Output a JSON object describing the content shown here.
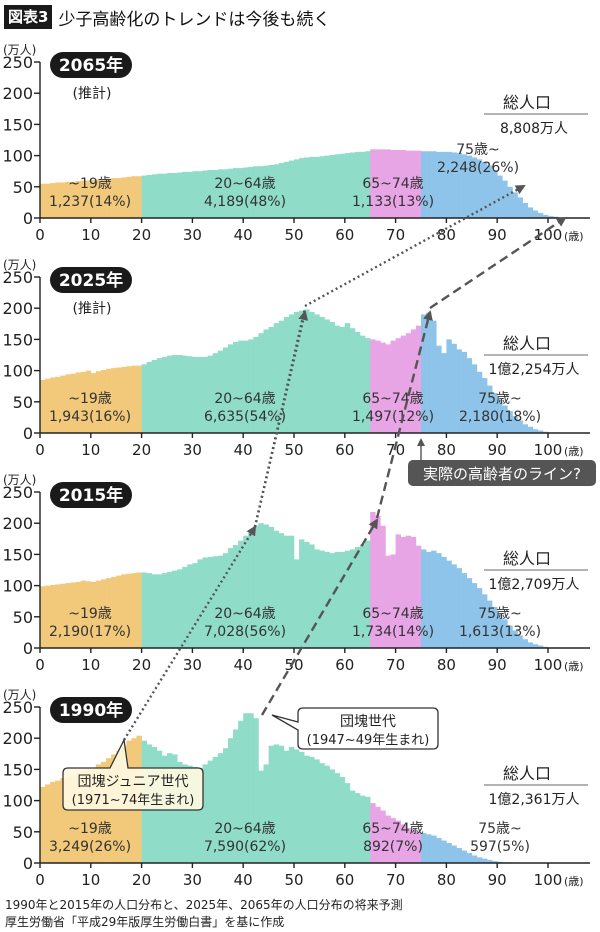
{
  "header": {
    "badge": "図表3",
    "title": "少子高齢化のトレンドは今後も続く"
  },
  "axis": {
    "y_unit": "(万人)",
    "y_ticks": [
      0,
      50,
      100,
      150,
      200,
      250
    ],
    "x_ticks": [
      "0",
      "10",
      "20",
      "30",
      "40",
      "50",
      "60",
      "70",
      "80",
      "90",
      "100"
    ],
    "x_unit": "(歳)"
  },
  "colors": {
    "youth": "#f2c97a",
    "working": "#8fdcc8",
    "young_old": "#e8a5e6",
    "old_old": "#8ec4ea",
    "badge": "#1a1a1a",
    "arrow": "#555555",
    "callout_dark": "#555555"
  },
  "panels": [
    {
      "year_label": "2065年",
      "sub_label": "(推計)",
      "total_label": "総人口",
      "total_value": "8,808万人",
      "groups": [
        {
          "name": "~19歳",
          "value": "1,237(14%)"
        },
        {
          "name": "20~64歳",
          "value": "4,189(48%)"
        },
        {
          "name": "65~74歳",
          "value": "1,133(13%)"
        },
        {
          "name": "75歳~",
          "value": "2,248(26%)"
        }
      ]
    },
    {
      "year_label": "2025年",
      "sub_label": "(推計)",
      "total_label": "総人口",
      "total_value": "1億2,254万人",
      "groups": [
        {
          "name": "~19歳",
          "value": "1,943(16%)"
        },
        {
          "name": "20~64歳",
          "value": "6,635(54%)"
        },
        {
          "name": "65~74歳",
          "value": "1,497(12%)"
        },
        {
          "name": "75歳~",
          "value": "2,180(18%)"
        }
      ],
      "callout": "実際の高齢者のライン?"
    },
    {
      "year_label": "2015年",
      "sub_label": "",
      "total_label": "総人口",
      "total_value": "1億2,709万人",
      "groups": [
        {
          "name": "~19歳",
          "value": "2,190(17%)"
        },
        {
          "name": "20~64歳",
          "value": "7,028(56%)"
        },
        {
          "name": "65~74歳",
          "value": "1,734(14%)"
        },
        {
          "name": "75歳~",
          "value": "1,613(13%)"
        }
      ]
    },
    {
      "year_label": "1990年",
      "sub_label": "",
      "total_label": "総人口",
      "total_value": "1億2,361万人",
      "groups": [
        {
          "name": "~19歳",
          "value": "3,249(26%)"
        },
        {
          "name": "20~64歳",
          "value": "7,590(62%)"
        },
        {
          "name": "65~74歳",
          "value": "892(7%)"
        },
        {
          "name": "75歳~",
          "value": "597(5%)"
        }
      ],
      "callouts": [
        {
          "line1": "団塊ジュニア世代",
          "line2": "(1971~74年生まれ)"
        },
        {
          "line1": "団塊世代",
          "line2": "(1947~49年生まれ)"
        }
      ]
    }
  ],
  "footer": {
    "line1": "1990年と2015年の人口分布と、2025年、2065年の人口分布の将来予測",
    "line2": "厚生労働省「平成29年版厚生労働白書」を基に作成"
  },
  "chart_data": [
    {
      "type": "bar",
      "title": "2065年 (推計)",
      "xlabel": "年齢(歳)",
      "ylabel": "人口(万人)",
      "ylim": [
        0,
        250
      ],
      "xlim": [
        0,
        105
      ],
      "total": "8,808万人",
      "x": "ages 0..105",
      "values": [
        55,
        55,
        56,
        57,
        57,
        58,
        58,
        59,
        60,
        60,
        61,
        62,
        62,
        63,
        64,
        64,
        65,
        66,
        67,
        67,
        68,
        69,
        70,
        71,
        71,
        72,
        72,
        73,
        74,
        74,
        75,
        75,
        76,
        77,
        77,
        78,
        78,
        79,
        80,
        80,
        81,
        82,
        83,
        83,
        84,
        85,
        86,
        88,
        90,
        92,
        94,
        96,
        97,
        98,
        98,
        99,
        100,
        101,
        102,
        103,
        104,
        105,
        106,
        106,
        107,
        110,
        110,
        110,
        110,
        109,
        109,
        109,
        108,
        108,
        108,
        107,
        107,
        107,
        106,
        106,
        106,
        105,
        104,
        102,
        100,
        97,
        94,
        90,
        84,
        77,
        68,
        60,
        50,
        41,
        33,
        24,
        17,
        12,
        8,
        5,
        3,
        2,
        1,
        1,
        0,
        0
      ],
      "groups": [
        {
          "name": "~19歳",
          "range": [
            0,
            19
          ],
          "total": 1237,
          "pct": 14
        },
        {
          "name": "20~64歳",
          "range": [
            20,
            64
          ],
          "total": 4189,
          "pct": 48
        },
        {
          "name": "65~74歳",
          "range": [
            65,
            74
          ],
          "total": 1133,
          "pct": 13
        },
        {
          "name": "75歳~",
          "range": [
            75,
            105
          ],
          "total": 2248,
          "pct": 26
        }
      ]
    },
    {
      "type": "bar",
      "title": "2025年 (推計)",
      "xlabel": "年齢(歳)",
      "ylabel": "人口(万人)",
      "ylim": [
        0,
        250
      ],
      "xlim": [
        0,
        105
      ],
      "total": "1億2,254万人",
      "values": [
        85,
        87,
        89,
        90,
        92,
        94,
        95,
        97,
        98,
        100,
        96,
        99,
        101,
        103,
        104,
        105,
        106,
        107,
        108,
        108,
        110,
        114,
        117,
        120,
        122,
        124,
        125,
        125,
        124,
        123,
        122,
        122,
        122,
        124,
        128,
        132,
        137,
        142,
        146,
        148,
        148,
        150,
        154,
        160,
        166,
        170,
        176,
        180,
        186,
        190,
        194,
        196,
        198,
        194,
        190,
        186,
        182,
        178,
        172,
        170,
        176,
        168,
        162,
        156,
        152,
        150,
        148,
        145,
        142,
        148,
        152,
        156,
        160,
        166,
        172,
        190,
        193,
        180,
        140,
        128,
        150,
        143,
        134,
        130,
        120,
        110,
        98,
        88,
        76,
        64,
        54,
        44,
        35,
        27,
        20,
        14,
        10,
        6,
        4,
        2,
        1,
        1,
        0,
        0,
        0,
        0
      ],
      "groups": [
        {
          "name": "~19歳",
          "range": [
            0,
            19
          ],
          "total": 1943,
          "pct": 16
        },
        {
          "name": "20~64歳",
          "range": [
            20,
            64
          ],
          "total": 6635,
          "pct": 54
        },
        {
          "name": "65~74歳",
          "range": [
            65,
            74
          ],
          "total": 1497,
          "pct": 12
        },
        {
          "name": "75歳~",
          "range": [
            75,
            105
          ],
          "total": 2180,
          "pct": 18
        }
      ],
      "annotation": "実際の高齢者のライン? (75歳)"
    },
    {
      "type": "bar",
      "title": "2015年",
      "xlabel": "年齢(歳)",
      "ylabel": "人口(万人)",
      "ylim": [
        0,
        250
      ],
      "xlim": [
        0,
        105
      ],
      "total": "1億2,709万人",
      "values": [
        99,
        100,
        101,
        102,
        103,
        104,
        105,
        106,
        108,
        107,
        106,
        108,
        110,
        112,
        114,
        116,
        118,
        119,
        120,
        121,
        121,
        120,
        118,
        118,
        120,
        122,
        124,
        126,
        130,
        134,
        136,
        142,
        145,
        146,
        147,
        148,
        152,
        160,
        165,
        172,
        180,
        186,
        196,
        200,
        198,
        194,
        188,
        184,
        180,
        180,
        142,
        174,
        170,
        166,
        158,
        156,
        154,
        152,
        154,
        154,
        156,
        158,
        162,
        166,
        172,
        218,
        212,
        196,
        148,
        150,
        182,
        178,
        180,
        178,
        164,
        158,
        154,
        156,
        152,
        146,
        140,
        134,
        128,
        120,
        112,
        104,
        96,
        86,
        76,
        66,
        56,
        46,
        36,
        28,
        20,
        14,
        9,
        6,
        4,
        2,
        1,
        1,
        0,
        0,
        0,
        0
      ],
      "groups": [
        {
          "name": "~19歳",
          "range": [
            0,
            19
          ],
          "total": 2190,
          "pct": 17
        },
        {
          "name": "20~64歳",
          "range": [
            20,
            64
          ],
          "total": 7028,
          "pct": 56
        },
        {
          "name": "65~74歳",
          "range": [
            65,
            74
          ],
          "total": 1734,
          "pct": 14
        },
        {
          "name": "75歳~",
          "range": [
            75,
            105
          ],
          "total": 1613,
          "pct": 13
        }
      ]
    },
    {
      "type": "bar",
      "title": "1990年",
      "xlabel": "年齢(歳)",
      "ylabel": "人口(万人)",
      "ylim": [
        0,
        250
      ],
      "xlim": [
        0,
        105
      ],
      "total": "1億2,361万人",
      "values": [
        122,
        126,
        130,
        132,
        136,
        138,
        140,
        144,
        148,
        150,
        152,
        158,
        162,
        168,
        174,
        180,
        188,
        196,
        200,
        204,
        196,
        190,
        186,
        180,
        172,
        176,
        174,
        162,
        158,
        156,
        154,
        152,
        158,
        164,
        170,
        176,
        184,
        200,
        214,
        228,
        240,
        240,
        232,
        148,
        158,
        188,
        190,
        188,
        180,
        186,
        182,
        178,
        172,
        170,
        166,
        160,
        156,
        150,
        144,
        138,
        128,
        116,
        112,
        108,
        106,
        96,
        90,
        84,
        76,
        72,
        68,
        62,
        56,
        54,
        50,
        48,
        46,
        44,
        40,
        36,
        32,
        28,
        24,
        20,
        16,
        12,
        9,
        7,
        5,
        3,
        2,
        1,
        1,
        0,
        0,
        0,
        0,
        0,
        0,
        0,
        0,
        0,
        0,
        0,
        0,
        0
      ],
      "groups": [
        {
          "name": "~19歳",
          "range": [
            0,
            19
          ],
          "total": 3249,
          "pct": 26
        },
        {
          "name": "20~64歳",
          "range": [
            20,
            64
          ],
          "total": 7590,
          "pct": 62
        },
        {
          "name": "65~74歳",
          "range": [
            65,
            74
          ],
          "total": 892,
          "pct": 7
        },
        {
          "name": "75歳~",
          "range": [
            75,
            105
          ],
          "total": 597,
          "pct": 5
        }
      ],
      "annotations": [
        "団塊ジュニア世代 (1971~74年生まれ)",
        "団塊世代 (1947~49年生まれ)"
      ]
    }
  ]
}
